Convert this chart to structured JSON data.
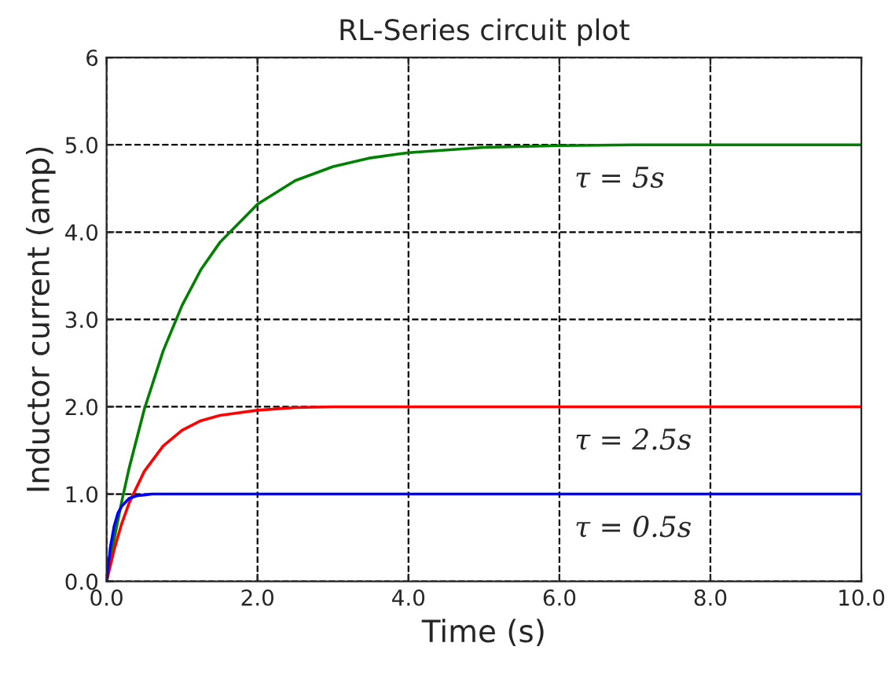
{
  "chart_data": {
    "type": "line",
    "title": "RL-Series circuit plot",
    "xlabel": "Time (s)",
    "ylabel": "Inductor current (amp)",
    "series": [
      {
        "color": "#008000",
        "x": [
          0,
          0.1,
          0.2,
          0.3,
          0.5,
          0.75,
          1,
          1.25,
          1.5,
          2,
          2.5,
          3,
          3.5,
          4,
          5,
          6,
          7,
          8,
          10
        ],
        "values": [
          0,
          0.48,
          0.91,
          1.3,
          1.97,
          2.64,
          3.16,
          3.57,
          3.88,
          4.32,
          4.59,
          4.75,
          4.85,
          4.91,
          4.97,
          4.99,
          5,
          5,
          5
        ]
      },
      {
        "color": "#ff0000",
        "x": [
          0,
          0.1,
          0.2,
          0.3,
          0.5,
          0.75,
          1,
          1.25,
          1.5,
          2,
          2.5,
          3,
          10
        ],
        "values": [
          0,
          0.36,
          0.66,
          0.9,
          1.26,
          1.55,
          1.73,
          1.84,
          1.9,
          1.96,
          1.99,
          2,
          2
        ]
      },
      {
        "color": "#0000ff",
        "x": [
          0,
          0.05,
          0.1,
          0.15,
          0.2,
          0.3,
          0.4,
          0.5,
          0.6,
          10
        ],
        "values": [
          0,
          0.39,
          0.63,
          0.78,
          0.86,
          0.95,
          0.98,
          0.99,
          1,
          1
        ]
      }
    ],
    "xlim": [
      0,
      10
    ],
    "ylim": [
      0,
      6
    ],
    "xticks": [
      {
        "value": 0,
        "label": "0.0"
      },
      {
        "value": 2,
        "label": "2.0"
      },
      {
        "value": 4,
        "label": "4.0"
      },
      {
        "value": 6,
        "label": "6.0"
      },
      {
        "value": 8,
        "label": "8.0"
      },
      {
        "value": 10,
        "label": "10.0"
      }
    ],
    "yticks": [
      {
        "value": 0,
        "label": "0.0"
      },
      {
        "value": 1,
        "label": "1.0"
      },
      {
        "value": 2,
        "label": "2.0"
      },
      {
        "value": 3,
        "label": "3.0"
      },
      {
        "value": 4,
        "label": "4.0"
      },
      {
        "value": 5,
        "label": "5.0"
      },
      6
    ],
    "grid": true,
    "line_style": "solid",
    "annotations": [
      "τ = 5s",
      "τ = 2.5s",
      "τ = 0.5s"
    ]
  }
}
